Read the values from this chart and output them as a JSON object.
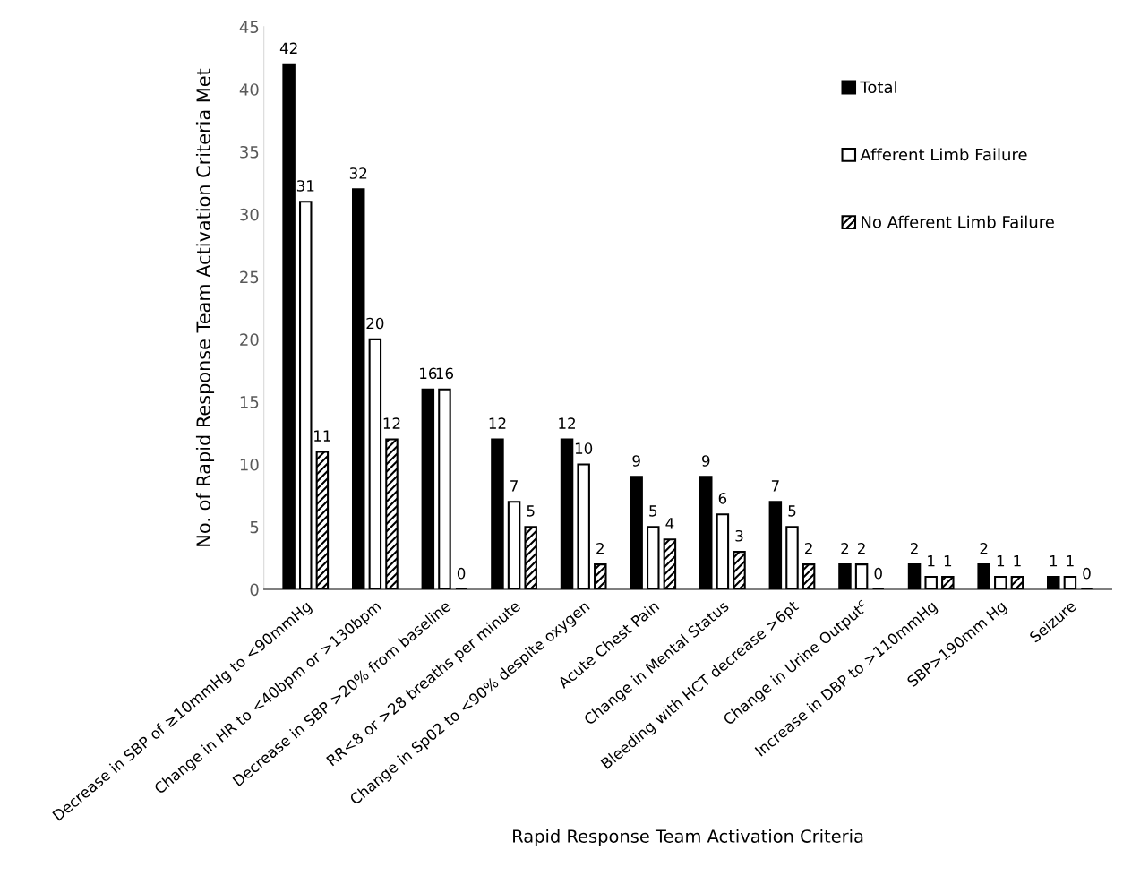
{
  "chart_data": {
    "type": "bar",
    "xlabel": "Rapid Response Team Activation Criteria",
    "ylabel": "No. of Rapid Response Team Activation Criteria Met",
    "categories": [
      "Decrease in SBP of ≥10mmHg to <90mmHg",
      "Change in HR to <40bpm or >130bpm",
      "Decrease in SBP >20% from baseline",
      "RR<8 or >28 breaths per minute",
      "Change in Sp02 to <90% despite oxygen",
      "Acute Chest Pain",
      "Change in Mental Status",
      "Bleeding with HCT decrease >6pt",
      "Change in Urine Output$^{c}$",
      "Increase in DBP to >110mmHg",
      "SBP>190mm Hg",
      "Seizure"
    ],
    "series": [
      {
        "name": "Total",
        "color": "#000000",
        "values": [
          42,
          32,
          16,
          12,
          12,
          9,
          9,
          7,
          2,
          2,
          2,
          1
        ]
      },
      {
        "name": "Afferent Limb Failure",
        "color": "#ffffff",
        "values": [
          31,
          20,
          16,
          7,
          10,
          5,
          6,
          5,
          2,
          1,
          1,
          1
        ]
      },
      {
        "name": "No Afferent Limb Failure",
        "color": "#000000",
        "values": [
          11,
          12,
          0,
          5,
          2,
          4,
          3,
          2,
          0,
          1,
          1,
          0
        ]
      }
    ],
    "ylim": [
      0,
      45
    ],
    "yticks": [
      0,
      5,
      10,
      15,
      20,
      25,
      30,
      35,
      40,
      45
    ],
    "data_labels": true,
    "legend": "top right",
    "grid": false
  }
}
